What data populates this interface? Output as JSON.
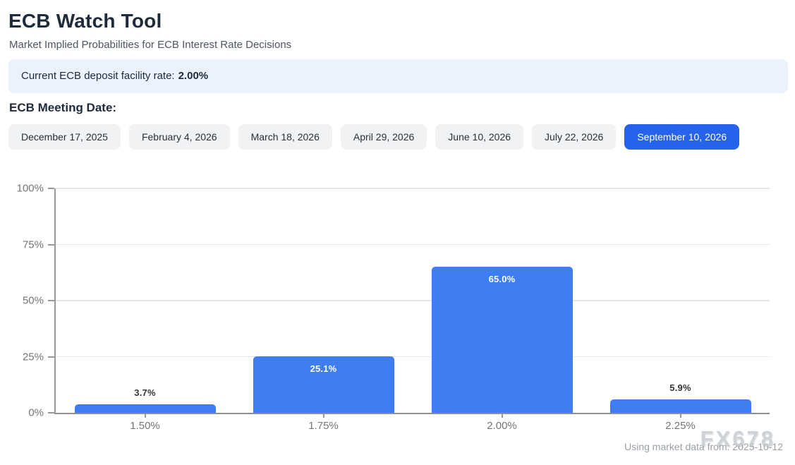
{
  "header": {
    "title": "ECB Watch Tool",
    "subtitle": "Market Implied Probabilities for ECB Interest Rate Decisions"
  },
  "rate_banner": {
    "label": "Current ECB deposit facility rate:",
    "value": "2.00%"
  },
  "meeting_dates": {
    "label": "ECB Meeting Date:",
    "options": [
      {
        "label": "December 17, 2025",
        "selected": false
      },
      {
        "label": "February 4, 2026",
        "selected": false
      },
      {
        "label": "March 18, 2026",
        "selected": false
      },
      {
        "label": "April 29, 2026",
        "selected": false
      },
      {
        "label": "June 10, 2026",
        "selected": false
      },
      {
        "label": "July 22, 2026",
        "selected": false
      },
      {
        "label": "September 10, 2026",
        "selected": true
      }
    ]
  },
  "chart_data": {
    "type": "bar",
    "categories": [
      "1.50%",
      "1.75%",
      "2.00%",
      "2.25%"
    ],
    "values": [
      3.7,
      25.1,
      65.0,
      5.9
    ],
    "value_labels": [
      "3.7%",
      "25.1%",
      "65.0%",
      "5.9%"
    ],
    "title": "",
    "xlabel": "",
    "ylabel": "",
    "ylim": [
      0,
      100
    ],
    "yticks": [
      "0%",
      "25%",
      "50%",
      "75%",
      "100%"
    ],
    "grid": true,
    "legend": false,
    "bar_color": "#3e7ef2",
    "inside_label_color": "#ffffff",
    "outside_label_color": "#333333"
  },
  "footer": {
    "note": "Using market data from: 2025-10-12",
    "watermark": "FX678"
  },
  "colors": {
    "accent": "#2563eb",
    "banner_bg": "#eaf2fe"
  }
}
